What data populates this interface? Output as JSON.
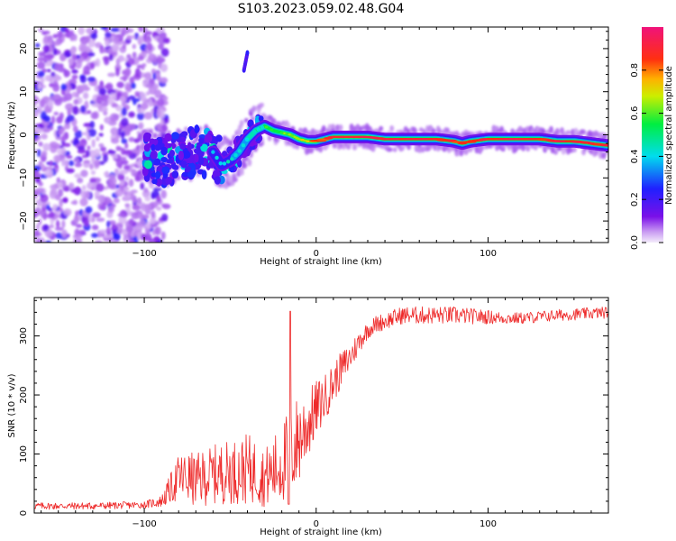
{
  "title": "S103.2023.059.02.48.G04",
  "colors": {
    "snr_line": "#ee2a2a",
    "axis": "#000000",
    "background": "#ffffff"
  },
  "chart_data": [
    {
      "type": "heatmap",
      "title": "",
      "xlabel": "Height of straight line (km)",
      "ylabel": "Frequency (Hz)",
      "xlim": [
        -164,
        170
      ],
      "ylim": [
        -25,
        25
      ],
      "xticks": [
        -100,
        0,
        100
      ],
      "yticks": [
        -20,
        -10,
        0,
        10,
        20
      ],
      "xticks_minor_step": 10,
      "yticks_minor_step": 2,
      "colorbar": {
        "label": "Normalized spectral amplitude",
        "range": [
          0,
          1
        ],
        "ticks": [
          0.0,
          0.2,
          0.4,
          0.6,
          0.8
        ],
        "colormap": "rainbow (white-lilac at 0, purple, blue, cyan, green, yellow, orange, red, pink at 1)"
      },
      "ridge": {
        "description": "main spectral line (frequency vs height)",
        "x": [
          -100,
          -90,
          -80,
          -70,
          -60,
          -55,
          -50,
          -45,
          -40,
          -35,
          -30,
          -25,
          -20,
          -15,
          -10,
          -5,
          0,
          5,
          10,
          20,
          30,
          40,
          50,
          60,
          70,
          80,
          85,
          90,
          100,
          110,
          120,
          130,
          140,
          150,
          160,
          170
        ],
        "y": [
          -5,
          -6,
          -5,
          -4,
          -4,
          -7,
          -6,
          -4,
          -1,
          1,
          2,
          1,
          0.5,
          0,
          -1,
          -1.5,
          -1.5,
          -1,
          -0.5,
          -0.5,
          -0.5,
          -1,
          -1,
          -1,
          -1,
          -1.5,
          -2,
          -1.5,
          -1,
          -1,
          -1,
          -1,
          -1.5,
          -1.5,
          -2,
          -2.5
        ],
        "amplitude": [
          0.3,
          0.35,
          0.3,
          0.3,
          0.3,
          0.35,
          0.35,
          0.4,
          0.5,
          0.55,
          0.6,
          0.6,
          0.6,
          0.6,
          0.7,
          0.8,
          0.85,
          0.9,
          0.95,
          0.95,
          0.95,
          0.95,
          0.95,
          0.95,
          0.95,
          0.95,
          0.9,
          0.95,
          0.95,
          0.95,
          0.95,
          0.95,
          0.95,
          0.95,
          0.95,
          0.95
        ]
      },
      "noise_region": {
        "description": "scattered low-amplitude noise at all frequencies",
        "x_range": [
          -164,
          -95
        ],
        "amplitude": 0.15
      },
      "spur": {
        "description": "short isolated feature",
        "x": [
          -42,
          -41,
          -40
        ],
        "y": [
          15,
          17,
          19
        ],
        "amplitude": 0.2
      }
    },
    {
      "type": "line",
      "title": "",
      "xlabel": "Height of straight line (km)",
      "ylabel": "SNR (10 * v/v)",
      "xlim": [
        -164,
        170
      ],
      "ylim": [
        0,
        365
      ],
      "xticks": [
        -100,
        0,
        100
      ],
      "yticks": [
        0,
        100,
        200,
        300
      ],
      "xticks_minor_step": 10,
      "yticks_minor_step": 20,
      "series": [
        {
          "description": "SNR envelope (trace drawn with noise of given amplitude around mean)",
          "x": [
            -164,
            -130,
            -100,
            -90,
            -85,
            -80,
            -75,
            -70,
            -60,
            -50,
            -45,
            -40,
            -35,
            -30,
            -25,
            -20,
            -15,
            -10,
            -5,
            0,
            5,
            10,
            15,
            20,
            25,
            30,
            35,
            40,
            50,
            60,
            80,
            100,
            110,
            120,
            140,
            170
          ],
          "mean": [
            12,
            12,
            14,
            20,
            40,
            60,
            60,
            55,
            65,
            70,
            70,
            75,
            70,
            60,
            70,
            85,
            100,
            125,
            150,
            175,
            195,
            220,
            245,
            265,
            290,
            310,
            320,
            325,
            335,
            335,
            335,
            332,
            330,
            330,
            335,
            340
          ],
          "noise": [
            6,
            6,
            6,
            10,
            25,
            40,
            45,
            45,
            50,
            55,
            55,
            60,
            55,
            50,
            60,
            70,
            80,
            80,
            60,
            50,
            40,
            35,
            30,
            25,
            20,
            15,
            15,
            15,
            15,
            15,
            15,
            12,
            10,
            10,
            10,
            10
          ]
        }
      ],
      "annotations": [
        {
          "x": -15,
          "y": 342,
          "note": "spike"
        },
        {
          "x": -16,
          "y": 15,
          "note": "dip"
        }
      ]
    }
  ]
}
